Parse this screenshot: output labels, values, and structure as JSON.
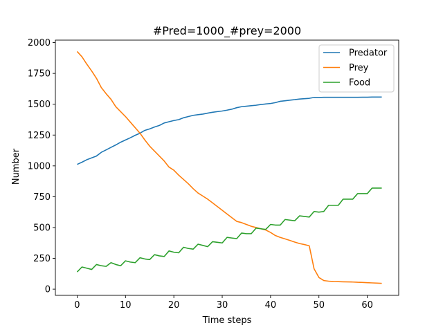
{
  "chart_data": {
    "type": "line",
    "title": "#Pred=1000_#prey=2000",
    "xlabel": "Time steps",
    "ylabel": "Number",
    "xlim": [
      -4.5,
      66.5
    ],
    "ylim": [
      -50,
      2020
    ],
    "xticks": [
      0,
      10,
      20,
      30,
      40,
      50,
      60
    ],
    "yticks": [
      0,
      250,
      500,
      750,
      1000,
      1250,
      1500,
      1750,
      2000
    ],
    "legend_position": "top-right",
    "grid": false,
    "x": [
      0,
      1,
      2,
      3,
      4,
      5,
      6,
      7,
      8,
      9,
      10,
      11,
      12,
      13,
      14,
      15,
      16,
      17,
      18,
      19,
      20,
      21,
      22,
      23,
      24,
      25,
      26,
      27,
      28,
      29,
      30,
      31,
      32,
      33,
      34,
      35,
      36,
      37,
      38,
      39,
      40,
      41,
      42,
      43,
      44,
      45,
      46,
      47,
      48,
      49,
      50,
      51,
      52,
      53,
      54,
      55,
      56,
      57,
      58,
      59,
      60,
      61,
      62,
      63
    ],
    "series": [
      {
        "name": "Predator",
        "color": "#1f77b4",
        "values": [
          1012,
          1030,
          1050,
          1065,
          1080,
          1110,
          1130,
          1150,
          1170,
          1192,
          1210,
          1228,
          1248,
          1265,
          1288,
          1300,
          1315,
          1328,
          1348,
          1358,
          1368,
          1375,
          1390,
          1400,
          1410,
          1415,
          1420,
          1428,
          1435,
          1440,
          1445,
          1452,
          1460,
          1472,
          1480,
          1484,
          1488,
          1492,
          1498,
          1502,
          1506,
          1513,
          1524,
          1528,
          1533,
          1537,
          1542,
          1545,
          1548,
          1555,
          1555,
          1556,
          1556,
          1556,
          1556,
          1556,
          1556,
          1556,
          1556,
          1557,
          1557,
          1558,
          1558,
          1558
        ]
      },
      {
        "name": "Prey",
        "color": "#ff7f0e",
        "values": [
          1928,
          1885,
          1825,
          1770,
          1710,
          1635,
          1585,
          1540,
          1480,
          1440,
          1400,
          1355,
          1310,
          1265,
          1210,
          1160,
          1120,
          1080,
          1040,
          990,
          965,
          925,
          890,
          855,
          815,
          780,
          755,
          730,
          700,
          670,
          640,
          610,
          580,
          550,
          540,
          525,
          510,
          500,
          490,
          480,
          460,
          435,
          420,
          408,
          395,
          382,
          370,
          362,
          352,
          165,
          95,
          70,
          65,
          62,
          61,
          60,
          59,
          58,
          56,
          55,
          53,
          51,
          49,
          47
        ]
      },
      {
        "name": "Food",
        "color": "#2ca02c",
        "values": [
          140,
          180,
          170,
          160,
          200,
          190,
          185,
          215,
          200,
          190,
          230,
          220,
          215,
          255,
          245,
          240,
          280,
          270,
          265,
          310,
          300,
          295,
          340,
          330,
          325,
          365,
          355,
          345,
          385,
          380,
          375,
          420,
          415,
          410,
          455,
          450,
          450,
          495,
          490,
          485,
          525,
          520,
          520,
          565,
          560,
          555,
          595,
          590,
          585,
          630,
          625,
          630,
          680,
          680,
          680,
          730,
          730,
          730,
          775,
          775,
          775,
          820,
          820,
          820
        ]
      }
    ]
  }
}
